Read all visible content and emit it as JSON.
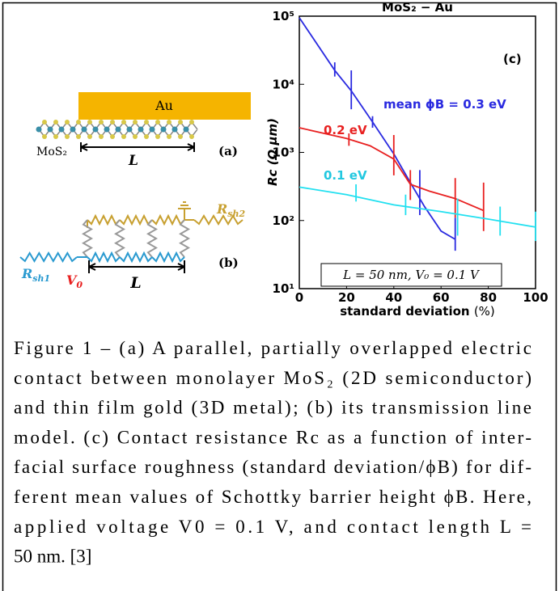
{
  "diagram_a": {
    "metal": "Au",
    "material": "MoS₂",
    "length": "L",
    "panel": "(a)"
  },
  "diagram_b": {
    "r_sheet_1": {
      "symbol": "R",
      "subscript": "sh1"
    },
    "r_sheet_2": {
      "symbol": "R",
      "subscript": "sh2"
    },
    "voltage": {
      "symbol": "V",
      "subscript": "0"
    },
    "length": "L",
    "panel": "(b)"
  },
  "chart_data": {
    "type": "line",
    "title": "MoS₂ − Au",
    "panel": "(c)",
    "xlabel": "standard deviation",
    "xlabel_unit": "(%)",
    "ylabel": "Rc (Ω μm)",
    "annotation": "L = 50 nm, V₀ = 0.1 V",
    "log_y": true,
    "xlim": [
      0,
      100
    ],
    "ylim": [
      10,
      100000
    ],
    "xticks": [
      0,
      20,
      40,
      60,
      80,
      100
    ],
    "yticks": [
      {
        "value": 10,
        "label": "10¹"
      },
      {
        "value": 100,
        "label": "10²"
      },
      {
        "value": 1000,
        "label": "10³"
      },
      {
        "value": 10000,
        "label": "10⁴"
      },
      {
        "value": 100000,
        "label": "10⁵"
      }
    ],
    "series": [
      {
        "name": "mean ϕB = 0.3 eV",
        "color": "#2a2ae0",
        "x": [
          0,
          15,
          22,
          31,
          40,
          47,
          53,
          60,
          66
        ],
        "values": [
          95000,
          16000,
          8000,
          2800,
          950,
          360,
          160,
          70,
          53
        ],
        "error_bars": [
          {
            "x": 15,
            "low": 13000,
            "high": 21000
          },
          {
            "x": 22,
            "low": 4300,
            "high": 16000
          },
          {
            "x": 31,
            "low": 2300,
            "high": 3400
          },
          {
            "x": 51,
            "low": 120,
            "high": 550
          },
          {
            "x": 66,
            "low": 36,
            "high": 110
          }
        ]
      },
      {
        "name": "0.2 eV",
        "color": "#e82020",
        "x": [
          0,
          20,
          30,
          40,
          47,
          55,
          66,
          78
        ],
        "values": [
          2300,
          1600,
          1250,
          800,
          340,
          270,
          210,
          140
        ],
        "error_bars": [
          {
            "x": 21,
            "low": 1250,
            "high": 1900
          },
          {
            "x": 40,
            "low": 460,
            "high": 1800
          },
          {
            "x": 47,
            "low": 200,
            "high": 550
          },
          {
            "x": 66,
            "low": 110,
            "high": 420
          },
          {
            "x": 78,
            "low": 70,
            "high": 360
          }
        ]
      },
      {
        "name": "0.1 eV",
        "color": "#22e0f0",
        "x": [
          0,
          20,
          40,
          60,
          80,
          100
        ],
        "values": [
          310,
          240,
          170,
          135,
          105,
          80
        ],
        "error_bars": [
          {
            "x": 24,
            "low": 190,
            "high": 340
          },
          {
            "x": 45,
            "low": 120,
            "high": 240
          },
          {
            "x": 67,
            "low": 60,
            "high": 210
          },
          {
            "x": 85,
            "low": 60,
            "high": 160
          },
          {
            "x": 100,
            "low": 50,
            "high": 135
          }
        ]
      }
    ]
  },
  "caption": [
    "Figure 1 – (a) A parallel, partially overlapped electric",
    "contact between monolayer MoS₂ (2D semiconductor)",
    "and thin film gold (3D metal); (b) its transmission line",
    "model. (c) Contact resistance Rc as a function of inter-",
    "facial surface roughness (standard deviation/ϕB) for dif-",
    "ferent mean values of Schottky barrier height ϕB. Here,",
    "applied voltage V0 = 0.1 V, and contact length L =",
    "50 nm. [3]"
  ]
}
